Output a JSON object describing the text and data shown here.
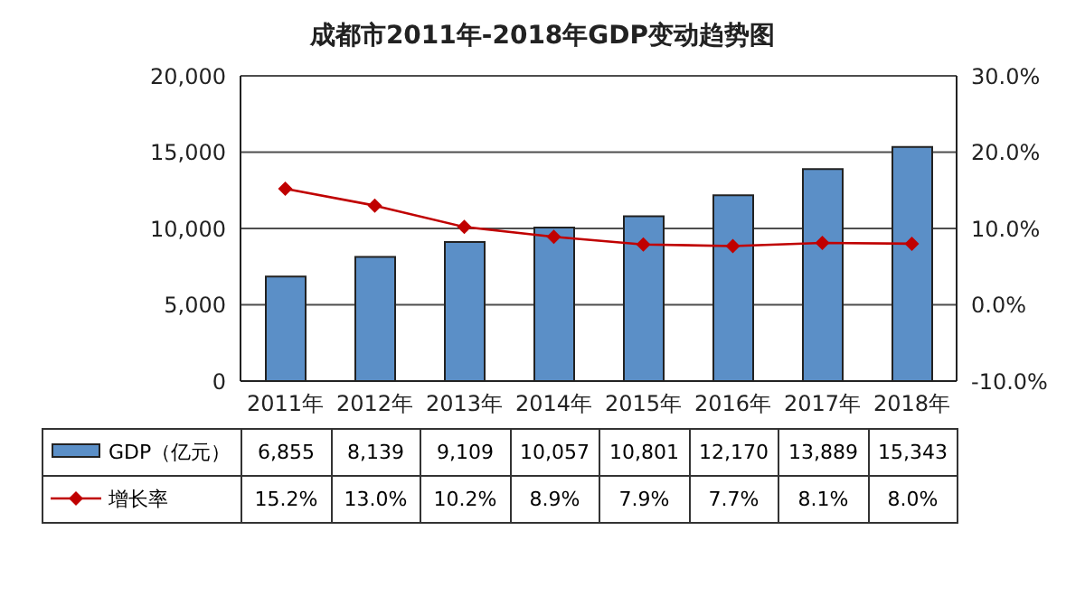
{
  "chart_data": {
    "type": "bar",
    "title": "成都市2011年-2018年GDP变动趋势图",
    "categories": [
      "2011年",
      "2012年",
      "2013年",
      "2014年",
      "2015年",
      "2016年",
      "2017年",
      "2018年"
    ],
    "series": [
      {
        "name": "GDP（亿元）",
        "color": "#5b8fc7",
        "values": [
          6855,
          8139,
          9109,
          10057,
          10801,
          12170,
          13889,
          15343
        ],
        "value_labels": [
          "6,855",
          "8,139",
          "9,109",
          "10,057",
          "10,801",
          "12,170",
          "13,889",
          "15,343"
        ]
      },
      {
        "name": "增长率",
        "type": "line",
        "axis": "y2",
        "color": "#c00000",
        "marker": "diamond",
        "line_style": "solid",
        "values": [
          15.2,
          13.0,
          10.2,
          8.9,
          7.9,
          7.7,
          8.1,
          8.0
        ],
        "value_labels": [
          "15.2%",
          "13.0%",
          "10.2%",
          "8.9%",
          "7.9%",
          "7.7%",
          "8.1%",
          "8.0%"
        ]
      }
    ],
    "ylim": [
      0,
      20000
    ],
    "yticks": [
      {
        "value": 0,
        "label": "0"
      },
      {
        "value": 5000,
        "label": "5,000"
      },
      {
        "value": 10000,
        "label": "10,000"
      },
      {
        "value": 15000,
        "label": "15,000"
      },
      {
        "value": 20000,
        "label": "20,000"
      }
    ],
    "y2lim": [
      -10,
      30
    ],
    "y2ticks": [
      {
        "value": -10,
        "label": "-10.0%"
      },
      {
        "value": 0,
        "label": "0.0%"
      },
      {
        "value": 10,
        "label": "10.0%"
      },
      {
        "value": 20,
        "label": "20.0%"
      },
      {
        "value": 30,
        "label": "30.0%"
      }
    ],
    "grid": "y",
    "legend": "bottom"
  }
}
